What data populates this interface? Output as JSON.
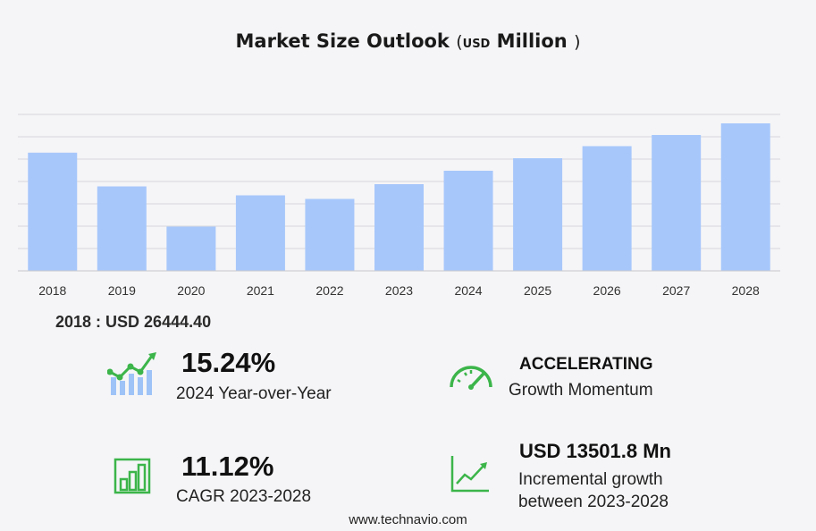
{
  "header": {
    "title_main": "Market Size Outlook",
    "unit_open": "(",
    "unit_small": "USD",
    "unit_big": "Million",
    "unit_close": ")"
  },
  "colors": {
    "bar": "#a7c7fb",
    "grid": "#d8d8de",
    "icon_green": "#3cb54a",
    "icon_blue": "#9ec3f7"
  },
  "chart_data": {
    "type": "bar",
    "title": "Market Size Outlook ( USD Million )",
    "categories": [
      "2018",
      "2019",
      "2020",
      "2021",
      "2022",
      "2023",
      "2024",
      "2025",
      "2026",
      "2027",
      "2028"
    ],
    "values": [
      26444.4,
      18900,
      9900,
      16900,
      16100,
      19400,
      22400,
      25200,
      27900,
      30400,
      33000
    ],
    "ylim": [
      0,
      35000
    ],
    "grid": true,
    "y_ticks_visible": false
  },
  "start": {
    "label": "2018 : USD  26444.40"
  },
  "kpis": {
    "yoy": {
      "value": "15.24%",
      "label": "2024 Year-over-Year"
    },
    "momentum": {
      "value": "ACCELERATING",
      "label": "Growth Momentum"
    },
    "cagr": {
      "value": "11.12%",
      "label": "CAGR 2023-2028"
    },
    "incremental": {
      "value": "USD  13501.8 Mn",
      "label_line1": "Incremental growth",
      "label_line2": "between 2023-2028"
    }
  },
  "footer": {
    "site": "www.technavio.com"
  }
}
